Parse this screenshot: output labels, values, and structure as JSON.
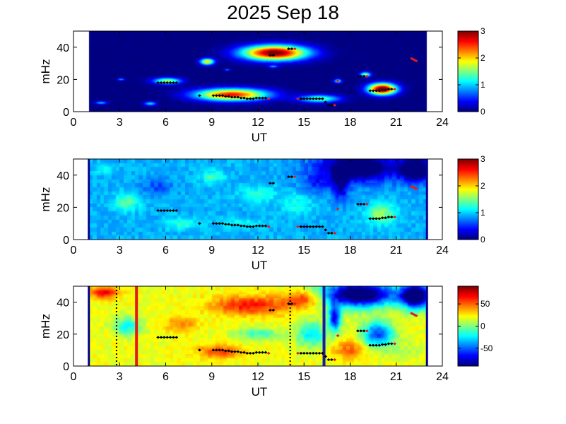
{
  "figure": {
    "title": "2025 Sep 18"
  },
  "chart_data": [
    {
      "type": "heatmap",
      "xlabel": "UT",
      "ylabel": "mHz",
      "xlim": [
        0,
        24
      ],
      "ylim": [
        0,
        50
      ],
      "xticks": [
        "0",
        "3",
        "6",
        "9",
        "12",
        "15",
        "18",
        "21",
        "24"
      ],
      "yticks": [
        "0",
        "20",
        "40"
      ],
      "data_coverage": [
        1,
        23
      ],
      "colorbar": {
        "min": 0,
        "max": 3,
        "ticks": [
          "0",
          "1",
          "2",
          "3"
        ]
      },
      "grid": false,
      "background_value": 0,
      "blobs": [
        {
          "x": 13.1,
          "y": 36.5,
          "rx": 2.1,
          "ry": 4.6,
          "value": 3.1
        },
        {
          "x": 10.3,
          "y": 10.5,
          "rx": 2.3,
          "ry": 3.7,
          "value": 2.6
        },
        {
          "x": 20.1,
          "y": 14.0,
          "rx": 0.9,
          "ry": 3.5,
          "value": 3.2
        },
        {
          "x": 8.7,
          "y": 31.0,
          "rx": 0.45,
          "ry": 2.0,
          "value": 1.9
        },
        {
          "x": 6.1,
          "y": 19.0,
          "rx": 0.9,
          "ry": 2.0,
          "value": 1.6
        },
        {
          "x": 16.0,
          "y": 8.0,
          "rx": 1.3,
          "ry": 2.4,
          "value": 1.4
        },
        {
          "x": 19.0,
          "y": 23.0,
          "rx": 0.35,
          "ry": 1.6,
          "value": 1.5
        },
        {
          "x": 17.2,
          "y": 19.0,
          "rx": 0.25,
          "ry": 1.3,
          "value": 1.2
        },
        {
          "x": 5.0,
          "y": 5.0,
          "rx": 0.4,
          "ry": 1.3,
          "value": 1.0
        },
        {
          "x": 1.8,
          "y": 5.5,
          "rx": 0.4,
          "ry": 1.0,
          "value": 0.9
        },
        {
          "x": 3.1,
          "y": 20.0,
          "rx": 0.25,
          "ry": 0.8,
          "value": 0.8
        },
        {
          "x": 13.0,
          "y": 28.0,
          "rx": 0.3,
          "ry": 0.8,
          "value": 0.8
        },
        {
          "x": 10.0,
          "y": 26.0,
          "rx": 0.2,
          "ry": 0.7,
          "value": 0.7
        }
      ]
    },
    {
      "type": "heatmap",
      "xlabel": "UT",
      "ylabel": "mHz",
      "xlim": [
        0,
        24
      ],
      "ylim": [
        0,
        50
      ],
      "xticks": [
        "0",
        "3",
        "6",
        "9",
        "12",
        "15",
        "18",
        "21",
        "24"
      ],
      "yticks": [
        "0",
        "20",
        "40"
      ],
      "data_coverage": [
        1,
        23
      ],
      "colorbar": {
        "min": 0,
        "max": 3,
        "ticks": [
          "0",
          "1",
          "2",
          "3"
        ]
      },
      "grid": false,
      "background_value": 0.9,
      "blobs": [
        {
          "x": 20.0,
          "y": 16.0,
          "rx": 0.9,
          "ry": 6.0,
          "value": 1.6
        },
        {
          "x": 3.5,
          "y": 23.0,
          "rx": 0.8,
          "ry": 5.0,
          "value": 1.4
        },
        {
          "x": 9.0,
          "y": 39.0,
          "rx": 0.8,
          "ry": 4.0,
          "value": 1.3
        },
        {
          "x": 12.0,
          "y": 28.0,
          "rx": 1.2,
          "ry": 5.0,
          "value": 1.2
        },
        {
          "x": 7.0,
          "y": 10.0,
          "rx": 1.0,
          "ry": 4.0,
          "value": 1.25
        },
        {
          "x": 14.5,
          "y": 22.0,
          "rx": 1.0,
          "ry": 6.0,
          "value": 1.2
        },
        {
          "x": 2.0,
          "y": 44.0,
          "rx": 0.6,
          "ry": 3.0,
          "value": 1.2
        },
        {
          "x": 11.0,
          "y": 10.0,
          "rx": 1.4,
          "ry": 3.0,
          "value": 1.15
        },
        {
          "x": 5.5,
          "y": 33.0,
          "rx": 1.0,
          "ry": 5.0,
          "value": 0.6
        },
        {
          "x": 16.0,
          "y": 35.0,
          "rx": 1.2,
          "ry": 6.0,
          "value": 0.55
        },
        {
          "x": 18.6,
          "y": 45.0,
          "rx": 2.6,
          "ry": 9.0,
          "value": -0.3
        },
        {
          "x": 22.3,
          "y": 44.0,
          "rx": 1.0,
          "ry": 8.0,
          "value": -0.3
        },
        {
          "x": 17.4,
          "y": 33.0,
          "rx": 0.5,
          "ry": 10.0,
          "value": 0.3
        }
      ]
    },
    {
      "type": "heatmap",
      "xlabel": "UT",
      "ylabel": "mHz",
      "xlim": [
        0,
        24
      ],
      "ylim": [
        0,
        50
      ],
      "xticks": [
        "0",
        "3",
        "6",
        "9",
        "12",
        "15",
        "18",
        "21",
        "24"
      ],
      "yticks": [
        "0",
        "20",
        "40"
      ],
      "data_coverage": [
        1,
        23
      ],
      "colorbar": {
        "min": -90,
        "max": 90,
        "ticks": [
          "50",
          "0",
          "-50"
        ],
        "tick_values": [
          50,
          0,
          -50
        ]
      },
      "grid": false,
      "background_value": 20,
      "blobs": [
        {
          "x": 11.5,
          "y": 38.0,
          "rx": 2.5,
          "ry": 6.0,
          "value": 65
        },
        {
          "x": 2.0,
          "y": 46.0,
          "rx": 0.9,
          "ry": 4.0,
          "value": 70
        },
        {
          "x": 9.5,
          "y": 9.0,
          "rx": 1.5,
          "ry": 4.0,
          "value": 55
        },
        {
          "x": 15.0,
          "y": 42.0,
          "rx": 1.2,
          "ry": 5.0,
          "value": 60
        },
        {
          "x": 7.0,
          "y": 26.0,
          "rx": 1.0,
          "ry": 5.0,
          "value": 45
        },
        {
          "x": 3.5,
          "y": 25.0,
          "rx": 0.9,
          "ry": 6.0,
          "value": -20
        },
        {
          "x": 12.0,
          "y": 20.0,
          "rx": 1.5,
          "ry": 4.0,
          "value": -10
        },
        {
          "x": 15.5,
          "y": 20.0,
          "rx": 1.0,
          "ry": 8.0,
          "value": -25
        },
        {
          "x": 18.0,
          "y": 10.0,
          "rx": 1.0,
          "ry": 6.0,
          "value": 50
        },
        {
          "x": 19.8,
          "y": 20.0,
          "rx": 1.0,
          "ry": 8.0,
          "value": -55
        },
        {
          "x": 21.5,
          "y": 10.0,
          "rx": 1.2,
          "ry": 6.0,
          "value": 10
        },
        {
          "x": 18.6,
          "y": 45.0,
          "rx": 2.4,
          "ry": 8.0,
          "value": -110
        },
        {
          "x": 22.3,
          "y": 44.0,
          "rx": 1.0,
          "ry": 8.0,
          "value": -110
        },
        {
          "x": 17.0,
          "y": 30.0,
          "rx": 0.4,
          "ry": 8.0,
          "value": -70
        }
      ],
      "vertical_lines": [
        {
          "x": 2.8,
          "style": "dotted",
          "color": "#000000"
        },
        {
          "x": 4.1,
          "style": "solid",
          "color": "#e41a1c"
        },
        {
          "x": 14.1,
          "style": "dotted",
          "color": "#000000"
        },
        {
          "x": 16.3,
          "style": "solid",
          "color": "#1a1aa0"
        }
      ]
    }
  ],
  "track_points": [
    {
      "x": 5.5,
      "y": 18,
      "c": "k"
    },
    {
      "x": 5.7,
      "y": 18,
      "c": "k"
    },
    {
      "x": 5.9,
      "y": 18,
      "c": "k"
    },
    {
      "x": 6.1,
      "y": 18,
      "c": "k"
    },
    {
      "x": 6.3,
      "y": 18,
      "c": "k"
    },
    {
      "x": 6.5,
      "y": 18,
      "c": "k"
    },
    {
      "x": 6.7,
      "y": 18,
      "c": "k"
    },
    {
      "x": 8.2,
      "y": 10,
      "c": "k"
    },
    {
      "x": 9.1,
      "y": 10,
      "c": "k"
    },
    {
      "x": 9.3,
      "y": 10,
      "c": "k"
    },
    {
      "x": 9.5,
      "y": 10,
      "c": "k"
    },
    {
      "x": 9.7,
      "y": 10,
      "c": "k"
    },
    {
      "x": 9.9,
      "y": 9.5,
      "c": "k"
    },
    {
      "x": 10.1,
      "y": 9.5,
      "c": "k"
    },
    {
      "x": 10.3,
      "y": 9,
      "c": "k"
    },
    {
      "x": 10.5,
      "y": 9,
      "c": "k"
    },
    {
      "x": 10.7,
      "y": 9,
      "c": "k"
    },
    {
      "x": 10.9,
      "y": 8.5,
      "c": "k"
    },
    {
      "x": 11.1,
      "y": 8.5,
      "c": "k"
    },
    {
      "x": 11.3,
      "y": 8,
      "c": "k"
    },
    {
      "x": 11.5,
      "y": 8,
      "c": "k"
    },
    {
      "x": 11.7,
      "y": 8,
      "c": "k"
    },
    {
      "x": 11.9,
      "y": 8.5,
      "c": "k"
    },
    {
      "x": 12.1,
      "y": 8.5,
      "c": "k"
    },
    {
      "x": 12.3,
      "y": 8.5,
      "c": "k"
    },
    {
      "x": 12.5,
      "y": 8.5,
      "c": "k"
    },
    {
      "x": 12.7,
      "y": 8,
      "c": "r"
    },
    {
      "x": 12.8,
      "y": 35,
      "c": "k"
    },
    {
      "x": 13.0,
      "y": 35,
      "c": "k"
    },
    {
      "x": 14.0,
      "y": 39,
      "c": "k"
    },
    {
      "x": 14.2,
      "y": 39,
      "c": "k"
    },
    {
      "x": 14.4,
      "y": 39,
      "c": "r"
    },
    {
      "x": 14.6,
      "y": 8,
      "c": "r"
    },
    {
      "x": 14.8,
      "y": 8,
      "c": "k"
    },
    {
      "x": 15.0,
      "y": 8,
      "c": "k"
    },
    {
      "x": 15.2,
      "y": 8,
      "c": "k"
    },
    {
      "x": 15.4,
      "y": 8,
      "c": "k"
    },
    {
      "x": 15.6,
      "y": 8,
      "c": "k"
    },
    {
      "x": 15.8,
      "y": 8,
      "c": "k"
    },
    {
      "x": 16.0,
      "y": 8,
      "c": "k"
    },
    {
      "x": 16.2,
      "y": 8,
      "c": "k"
    },
    {
      "x": 16.4,
      "y": 6,
      "c": "k"
    },
    {
      "x": 16.6,
      "y": 4,
      "c": "k"
    },
    {
      "x": 16.8,
      "y": 4,
      "c": "k"
    },
    {
      "x": 17.0,
      "y": 4,
      "c": "r"
    },
    {
      "x": 17.2,
      "y": 19,
      "c": "r"
    },
    {
      "x": 18.5,
      "y": 22,
      "c": "k"
    },
    {
      "x": 18.7,
      "y": 22,
      "c": "k"
    },
    {
      "x": 18.9,
      "y": 22,
      "c": "k"
    },
    {
      "x": 19.1,
      "y": 22,
      "c": "r"
    },
    {
      "x": 19.3,
      "y": 13,
      "c": "k"
    },
    {
      "x": 19.5,
      "y": 13,
      "c": "k"
    },
    {
      "x": 19.7,
      "y": 13,
      "c": "k"
    },
    {
      "x": 19.9,
      "y": 13,
      "c": "k"
    },
    {
      "x": 20.1,
      "y": 13.5,
      "c": "k"
    },
    {
      "x": 20.3,
      "y": 13.5,
      "c": "k"
    },
    {
      "x": 20.5,
      "y": 14,
      "c": "k"
    },
    {
      "x": 20.7,
      "y": 14,
      "c": "k"
    },
    {
      "x": 20.9,
      "y": 14,
      "c": "r"
    },
    {
      "x": 22.0,
      "y": 33,
      "c": "r"
    },
    {
      "x": 22.1,
      "y": 32.5,
      "c": "r"
    },
    {
      "x": 22.2,
      "y": 32,
      "c": "r"
    },
    {
      "x": 22.3,
      "y": 31.5,
      "c": "r"
    }
  ]
}
